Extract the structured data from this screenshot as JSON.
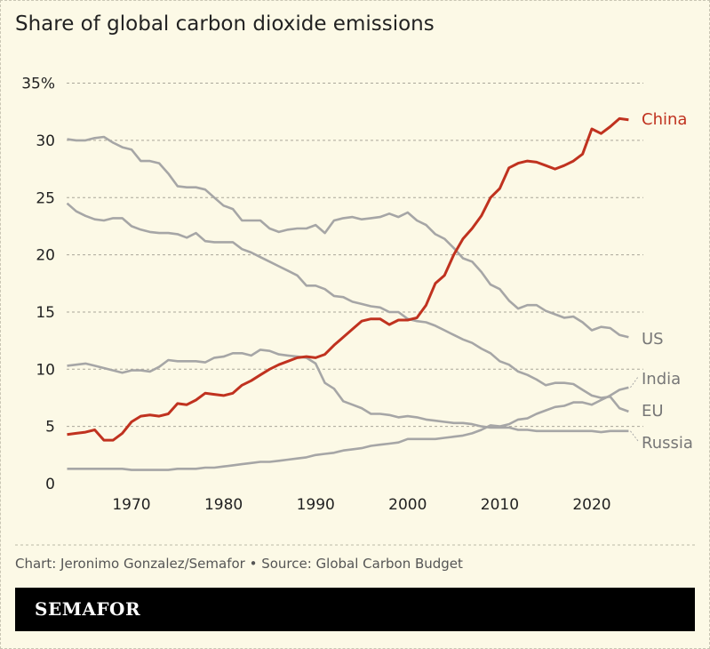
{
  "chart_data": {
    "type": "line",
    "title": "Share of global carbon dioxide emissions",
    "xlabel": "",
    "ylabel": "",
    "ylim": [
      0,
      35
    ],
    "xlim": [
      1963,
      2024
    ],
    "yticks": [
      0,
      5,
      10,
      15,
      20,
      25,
      30,
      35
    ],
    "ytick_labels": [
      "0",
      "5",
      "10",
      "15",
      "20",
      "25",
      "30",
      "35%"
    ],
    "xticks": [
      1970,
      1980,
      1990,
      2000,
      2010,
      2020
    ],
    "xtick_labels": [
      "1970",
      "1980",
      "1990",
      "2000",
      "2010",
      "2020"
    ],
    "grid": "horizontal dashed",
    "legend": "direct labels at right end of lines",
    "x": [
      1963,
      1964,
      1965,
      1966,
      1967,
      1968,
      1969,
      1970,
      1971,
      1972,
      1973,
      1974,
      1975,
      1976,
      1977,
      1978,
      1979,
      1980,
      1981,
      1982,
      1983,
      1984,
      1985,
      1986,
      1987,
      1988,
      1989,
      1990,
      1991,
      1992,
      1993,
      1994,
      1995,
      1996,
      1997,
      1998,
      1999,
      2000,
      2001,
      2002,
      2003,
      2004,
      2005,
      2006,
      2007,
      2008,
      2009,
      2010,
      2011,
      2012,
      2013,
      2014,
      2015,
      2016,
      2017,
      2018,
      2019,
      2020,
      2021,
      2022,
      2023,
      2024
    ],
    "series": [
      {
        "name": "China",
        "color": "#c0321f",
        "values": [
          4.3,
          4.4,
          4.5,
          4.7,
          3.8,
          3.8,
          4.4,
          5.4,
          5.9,
          6.0,
          5.9,
          6.1,
          7.0,
          6.9,
          7.3,
          7.9,
          7.8,
          7.7,
          7.9,
          8.6,
          9.0,
          9.5,
          10.0,
          10.4,
          10.7,
          11.0,
          11.1,
          11.0,
          11.3,
          12.1,
          12.8,
          13.5,
          14.2,
          14.4,
          14.4,
          13.9,
          14.3,
          14.3,
          14.5,
          15.6,
          17.5,
          18.2,
          20.0,
          21.4,
          22.3,
          23.4,
          25.0,
          25.8,
          27.6,
          28.0,
          28.2,
          28.1,
          27.8,
          27.5,
          27.8,
          28.2,
          28.8,
          31.0,
          30.6,
          31.2,
          31.9,
          31.8
        ]
      },
      {
        "name": "US",
        "color": "#a6a6a6",
        "values": [
          30.1,
          30.0,
          30.0,
          30.2,
          30.3,
          29.8,
          29.4,
          29.2,
          28.2,
          28.2,
          28.0,
          27.1,
          26.0,
          25.9,
          25.9,
          25.7,
          25.0,
          24.3,
          24.0,
          23.0,
          23.0,
          23.0,
          22.3,
          22.0,
          22.2,
          22.3,
          22.3,
          22.6,
          21.9,
          23.0,
          23.2,
          23.3,
          23.1,
          23.2,
          23.3,
          23.6,
          23.3,
          23.7,
          23.0,
          22.6,
          21.8,
          21.4,
          20.6,
          19.7,
          19.4,
          18.5,
          17.4,
          17.0,
          16.0,
          15.3,
          15.6,
          15.6,
          15.1,
          14.8,
          14.5,
          14.6,
          14.1,
          13.4,
          13.7,
          13.6,
          13.0,
          12.8
        ]
      },
      {
        "name": "India",
        "color": "#a6a6a6",
        "values": [
          1.3,
          1.3,
          1.3,
          1.3,
          1.3,
          1.3,
          1.3,
          1.2,
          1.2,
          1.2,
          1.2,
          1.2,
          1.3,
          1.3,
          1.3,
          1.4,
          1.4,
          1.5,
          1.6,
          1.7,
          1.8,
          1.9,
          1.9,
          2.0,
          2.1,
          2.2,
          2.3,
          2.5,
          2.6,
          2.7,
          2.9,
          3.0,
          3.1,
          3.3,
          3.4,
          3.5,
          3.6,
          3.9,
          3.9,
          3.9,
          3.9,
          4.0,
          4.1,
          4.2,
          4.4,
          4.7,
          5.1,
          5.0,
          5.2,
          5.6,
          5.7,
          6.1,
          6.4,
          6.7,
          6.8,
          7.1,
          7.1,
          6.9,
          7.3,
          7.7,
          8.2,
          8.4
        ]
      },
      {
        "name": "EU",
        "color": "#a6a6a6",
        "values": [
          24.5,
          23.8,
          23.4,
          23.1,
          23.0,
          23.2,
          23.2,
          22.5,
          22.2,
          22.0,
          21.9,
          21.9,
          21.8,
          21.5,
          21.9,
          21.2,
          21.1,
          21.1,
          21.1,
          20.5,
          20.2,
          19.8,
          19.4,
          19.0,
          18.6,
          18.2,
          17.3,
          17.3,
          17.0,
          16.4,
          16.3,
          15.9,
          15.7,
          15.5,
          15.4,
          15.0,
          15.0,
          14.4,
          14.2,
          14.1,
          13.8,
          13.4,
          13.0,
          12.6,
          12.3,
          11.8,
          11.4,
          10.7,
          10.4,
          9.8,
          9.5,
          9.1,
          8.6,
          8.8,
          8.8,
          8.7,
          8.2,
          7.7,
          7.5,
          7.6,
          6.6,
          6.3
        ]
      },
      {
        "name": "Russia",
        "color": "#a6a6a6",
        "values": [
          10.3,
          10.4,
          10.5,
          10.3,
          10.1,
          9.9,
          9.7,
          9.9,
          9.9,
          9.8,
          10.2,
          10.8,
          10.7,
          10.7,
          10.7,
          10.6,
          11.0,
          11.1,
          11.4,
          11.4,
          11.2,
          11.7,
          11.6,
          11.3,
          11.2,
          11.1,
          11.0,
          10.5,
          8.8,
          8.3,
          7.2,
          6.9,
          6.6,
          6.1,
          6.1,
          6.0,
          5.8,
          5.9,
          5.8,
          5.6,
          5.5,
          5.4,
          5.3,
          5.3,
          5.2,
          5.0,
          4.9,
          4.9,
          4.9,
          4.7,
          4.7,
          4.6,
          4.6,
          4.6,
          4.6,
          4.6,
          4.6,
          4.6,
          4.5,
          4.6,
          4.6,
          4.6
        ]
      }
    ]
  },
  "source": "Chart: Jeronimo Gonzalez/Semafor • Source: Global Carbon Budget",
  "logo": "SEMAFOR"
}
